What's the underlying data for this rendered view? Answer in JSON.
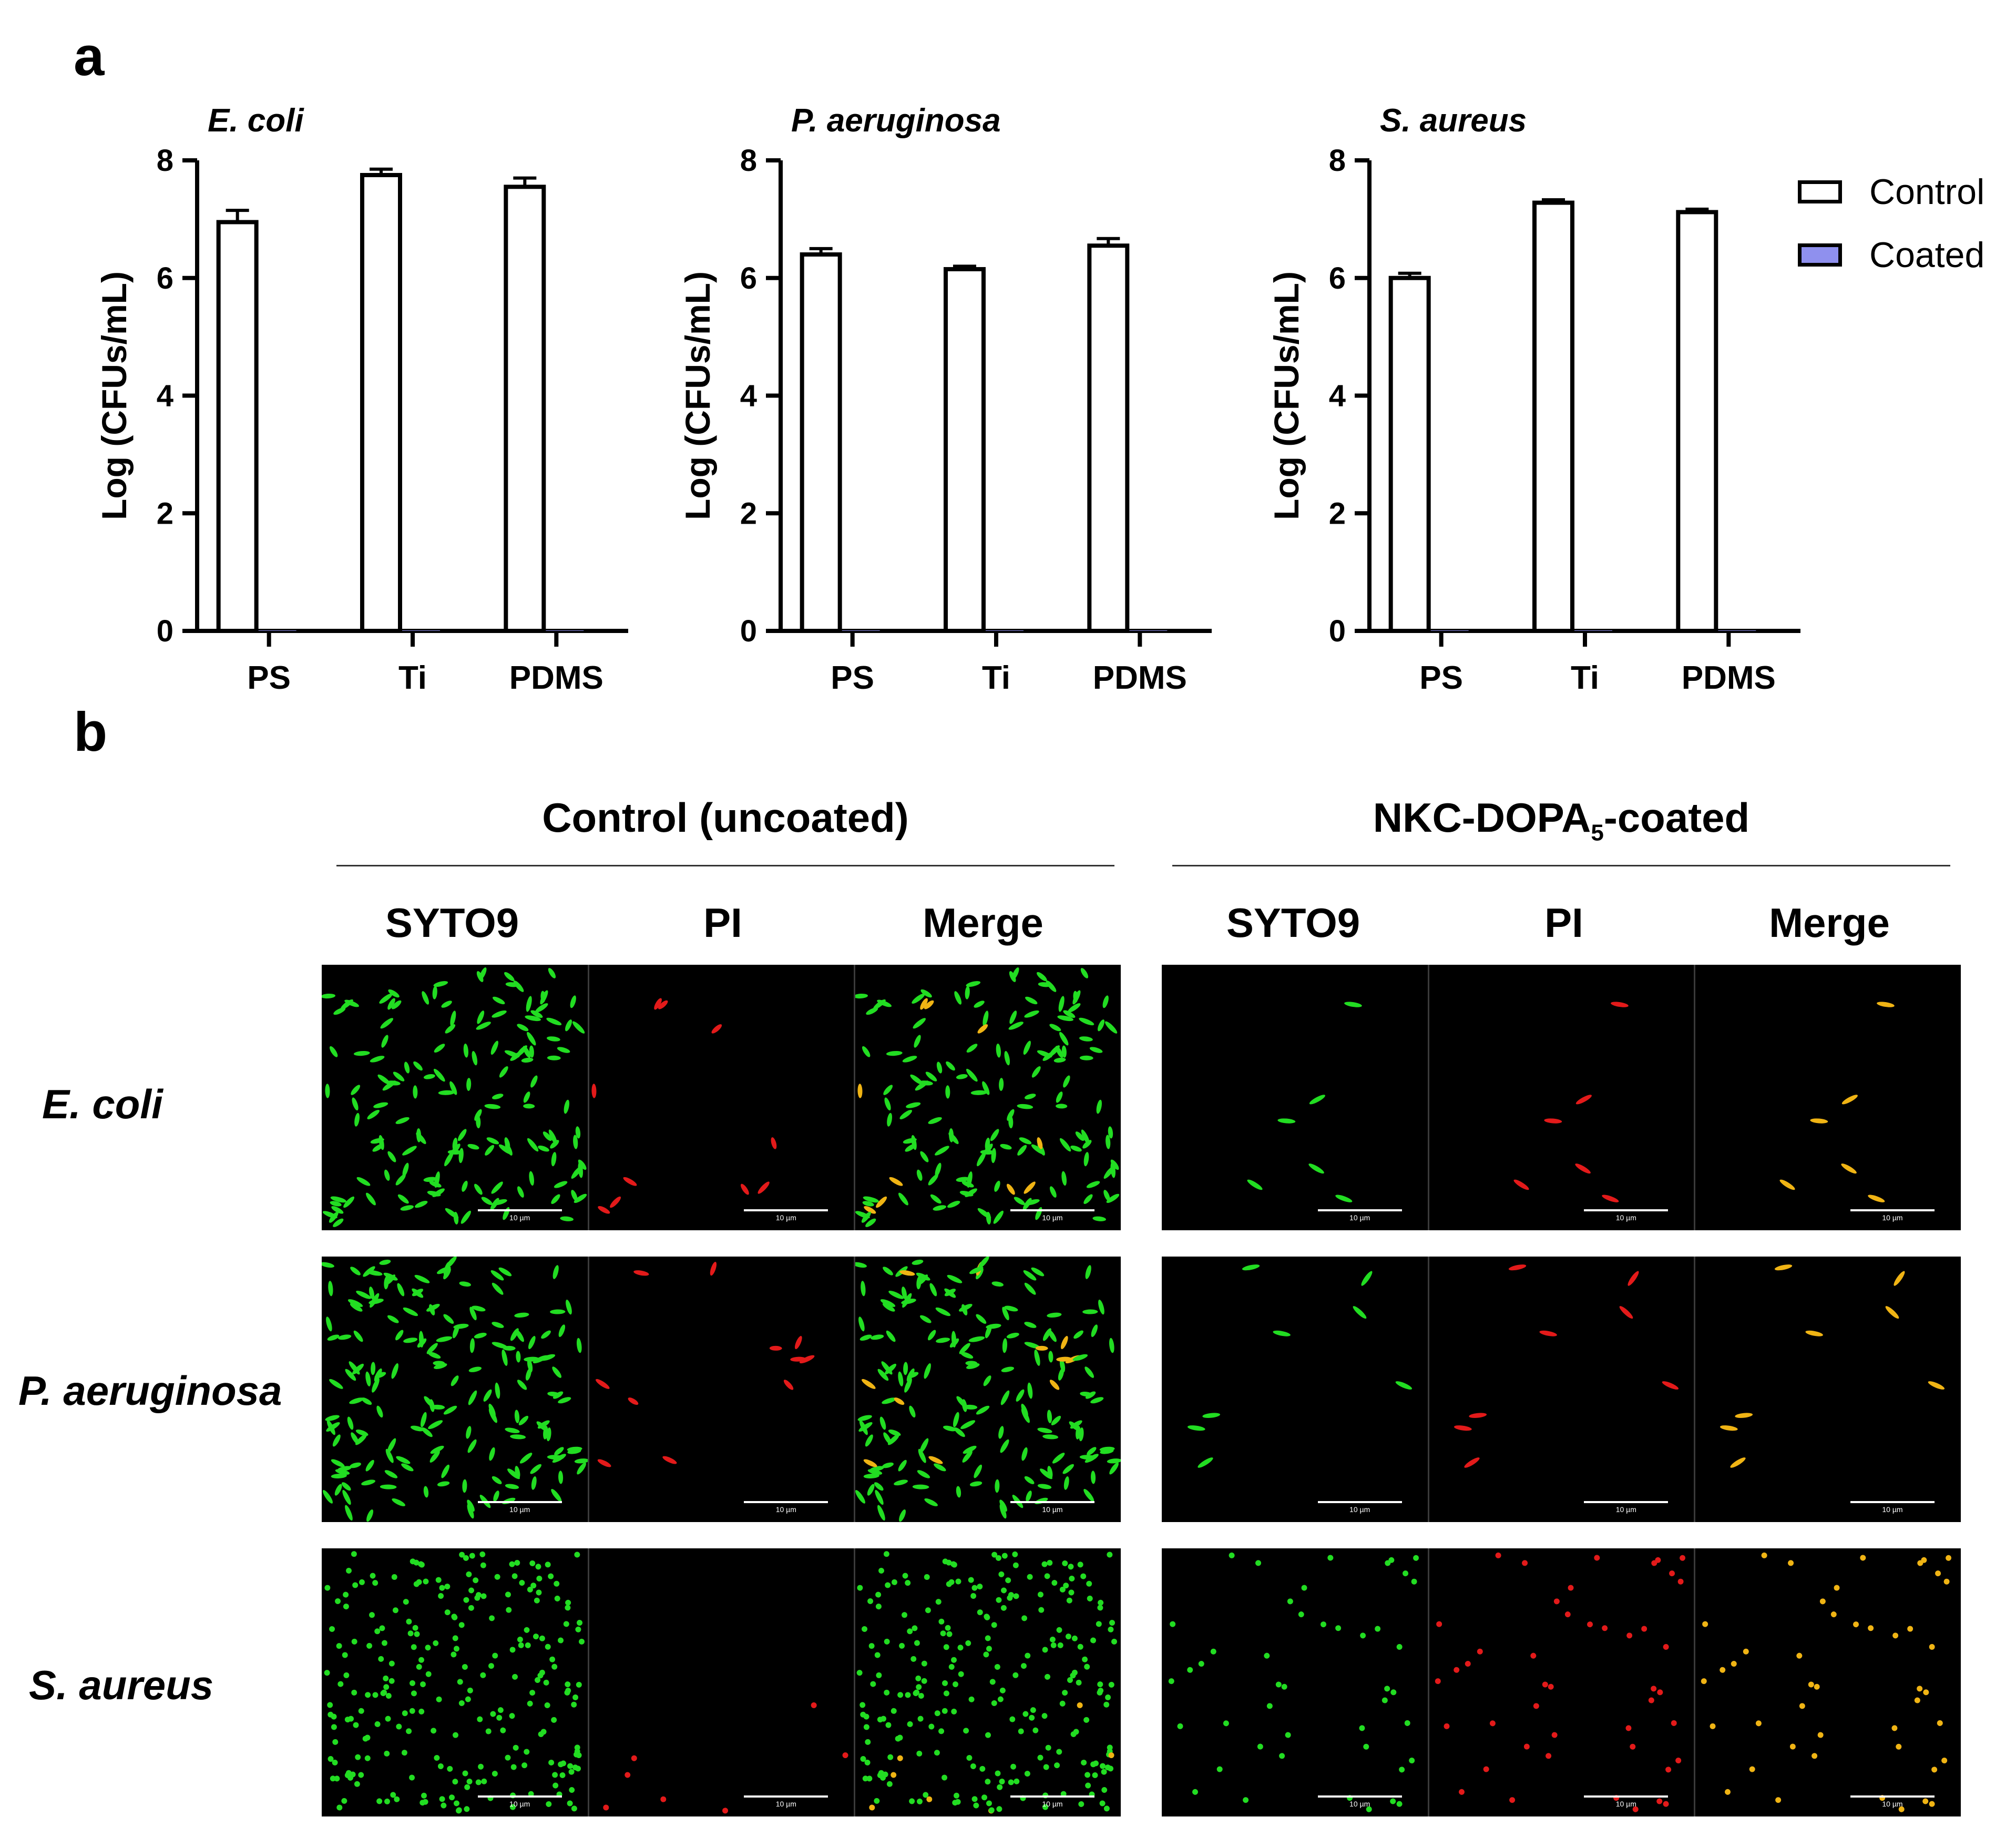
{
  "panel_a_label": "a",
  "panel_b_label": "b",
  "legend": [
    {
      "label": "Control",
      "color": "#ffffff"
    },
    {
      "label": "Coated",
      "color": "#8f90ee"
    }
  ],
  "chart_data": [
    {
      "type": "bar",
      "title": "E. coli",
      "ylabel": "Log (CFUs/mL)",
      "categories": [
        "PS",
        "Ti",
        "PDMS"
      ],
      "ylim": [
        0,
        8
      ],
      "yticks": [
        0,
        2,
        4,
        6,
        8
      ],
      "series": [
        {
          "name": "Control",
          "values": [
            6.95,
            7.75,
            7.55
          ],
          "errors": [
            0.2,
            0.1,
            0.15
          ]
        },
        {
          "name": "Coated",
          "values": [
            0,
            0,
            0
          ],
          "errors": [
            0,
            0,
            0
          ]
        }
      ]
    },
    {
      "type": "bar",
      "title": "P. aeruginosa",
      "ylabel": "Log (CFUs/mL)",
      "categories": [
        "PS",
        "Ti",
        "PDMS"
      ],
      "ylim": [
        0,
        8
      ],
      "yticks": [
        0,
        2,
        4,
        6,
        8
      ],
      "series": [
        {
          "name": "Control",
          "values": [
            6.4,
            6.15,
            6.55
          ],
          "errors": [
            0.1,
            0.05,
            0.12
          ]
        },
        {
          "name": "Coated",
          "values": [
            0,
            0,
            0
          ],
          "errors": [
            0,
            0,
            0
          ]
        }
      ]
    },
    {
      "type": "bar",
      "title": "S. aureus",
      "ylabel": "Log (CFUs/mL)",
      "categories": [
        "PS",
        "Ti",
        "PDMS"
      ],
      "ylim": [
        0,
        8
      ],
      "yticks": [
        0,
        2,
        4,
        6,
        8
      ],
      "series": [
        {
          "name": "Control",
          "values": [
            6.0,
            7.28,
            7.12
          ],
          "errors": [
            0.08,
            0.05,
            0.05
          ]
        },
        {
          "name": "Coated",
          "values": [
            0,
            0,
            0
          ],
          "errors": [
            0,
            0,
            0
          ]
        }
      ]
    }
  ],
  "panel_b": {
    "group_control": "Control (uncoated)",
    "group_coated_prefix": "NKC-DOPA",
    "group_coated_sub": "5",
    "group_coated_suffix": "-coated",
    "channels": [
      "SYTO9",
      "PI",
      "Merge"
    ],
    "rows": [
      "E. coli",
      "P. aeruginosa",
      "S. aureus"
    ],
    "scale_label": "10 µm"
  }
}
